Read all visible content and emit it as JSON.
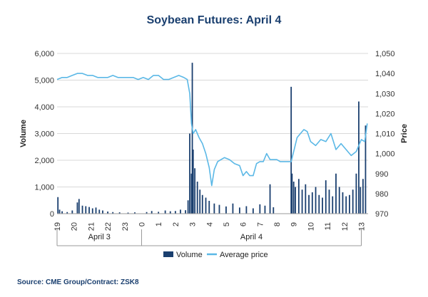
{
  "title": "Soybean Futures: April 4",
  "source": "Source: CME Group/Contract: ZSK8",
  "colors": {
    "volume": "#1a3f6f",
    "price": "#5bb8e6",
    "grid": "#d9d9d9"
  },
  "chart_data": {
    "type": "bar+line",
    "title": "Soybean Futures: April 4",
    "ylabel": "Volume",
    "y2label": "Price",
    "ylim": [
      0,
      6000
    ],
    "y2lim": [
      970,
      1050
    ],
    "y_ticks": [
      "0",
      "1,000",
      "2,000",
      "3,000",
      "4,000",
      "5,000",
      "6,000"
    ],
    "y2_ticks": [
      "970",
      "980",
      "990",
      "1,000",
      "1,010",
      "1,020",
      "1,030",
      "1,040",
      "1,050"
    ],
    "x_ticks": [
      {
        "label": "19",
        "t": 0
      },
      {
        "label": "20",
        "t": 1
      },
      {
        "label": "21",
        "t": 2
      },
      {
        "label": "22",
        "t": 3
      },
      {
        "label": "23",
        "t": 4
      },
      {
        "label": "0",
        "t": 5
      },
      {
        "label": "1",
        "t": 6
      },
      {
        "label": "2",
        "t": 7
      },
      {
        "label": "3",
        "t": 8
      },
      {
        "label": "4",
        "t": 9
      },
      {
        "label": "5",
        "t": 10
      },
      {
        "label": "6",
        "t": 11
      },
      {
        "label": "7",
        "t": 12
      },
      {
        "label": "8",
        "t": 13
      },
      {
        "label": "9",
        "t": 14
      },
      {
        "label": "10",
        "t": 15
      },
      {
        "label": "11",
        "t": 16
      },
      {
        "label": "12",
        "t": 17
      },
      {
        "label": "13",
        "t": 18
      }
    ],
    "x_groups": [
      {
        "label": "April 3",
        "from": 0,
        "to": 5
      },
      {
        "label": "April 4",
        "from": 5,
        "to": 18
      }
    ],
    "legend": [
      "Volume",
      "Average price"
    ],
    "legend_position": "bottom",
    "grid": "horizontal",
    "series": [
      {
        "name": "Volume",
        "type": "bar",
        "points": [
          [
            0.05,
            620
          ],
          [
            0.15,
            150
          ],
          [
            0.3,
            90
          ],
          [
            0.6,
            60
          ],
          [
            0.9,
            120
          ],
          [
            1.2,
            420
          ],
          [
            1.3,
            550
          ],
          [
            1.5,
            300
          ],
          [
            1.7,
            280
          ],
          [
            1.9,
            250
          ],
          [
            2.1,
            200
          ],
          [
            2.3,
            230
          ],
          [
            2.5,
            150
          ],
          [
            2.7,
            120
          ],
          [
            3.0,
            80
          ],
          [
            3.3,
            60
          ],
          [
            3.7,
            50
          ],
          [
            4.2,
            40
          ],
          [
            4.6,
            50
          ],
          [
            5.3,
            60
          ],
          [
            5.6,
            100
          ],
          [
            6.0,
            70
          ],
          [
            6.4,
            120
          ],
          [
            6.7,
            90
          ],
          [
            7.0,
            100
          ],
          [
            7.3,
            150
          ],
          [
            7.6,
            130
          ],
          [
            7.75,
            500
          ],
          [
            7.85,
            3000
          ],
          [
            7.95,
            1500
          ],
          [
            8.0,
            5650
          ],
          [
            8.05,
            2400
          ],
          [
            8.15,
            1700
          ],
          [
            8.3,
            1200
          ],
          [
            8.45,
            900
          ],
          [
            8.6,
            700
          ],
          [
            8.8,
            600
          ],
          [
            9.0,
            480
          ],
          [
            9.3,
            380
          ],
          [
            9.6,
            330
          ],
          [
            10.0,
            270
          ],
          [
            10.4,
            380
          ],
          [
            10.8,
            230
          ],
          [
            11.2,
            280
          ],
          [
            11.6,
            200
          ],
          [
            12.0,
            350
          ],
          [
            12.3,
            300
          ],
          [
            12.6,
            1100
          ],
          [
            12.8,
            240
          ],
          [
            13.85,
            4750
          ],
          [
            13.9,
            1500
          ],
          [
            14.0,
            1200
          ],
          [
            14.1,
            1000
          ],
          [
            14.3,
            1300
          ],
          [
            14.5,
            900
          ],
          [
            14.7,
            1100
          ],
          [
            14.9,
            700
          ],
          [
            15.1,
            800
          ],
          [
            15.3,
            1000
          ],
          [
            15.5,
            700
          ],
          [
            15.7,
            600
          ],
          [
            15.9,
            1250
          ],
          [
            16.1,
            900
          ],
          [
            16.3,
            650
          ],
          [
            16.5,
            1500
          ],
          [
            16.7,
            1000
          ],
          [
            16.9,
            800
          ],
          [
            17.1,
            650
          ],
          [
            17.3,
            700
          ],
          [
            17.5,
            900
          ],
          [
            17.7,
            1500
          ],
          [
            17.85,
            4200
          ],
          [
            17.95,
            1000
          ],
          [
            18.1,
            1300
          ],
          [
            18.25,
            3300
          ]
        ]
      },
      {
        "name": "Average price",
        "type": "line",
        "points": [
          [
            0.0,
            1037
          ],
          [
            0.3,
            1038
          ],
          [
            0.6,
            1038
          ],
          [
            0.9,
            1039
          ],
          [
            1.2,
            1040
          ],
          [
            1.5,
            1040
          ],
          [
            1.8,
            1039
          ],
          [
            2.1,
            1039
          ],
          [
            2.4,
            1038
          ],
          [
            2.7,
            1038
          ],
          [
            3.0,
            1038
          ],
          [
            3.3,
            1039
          ],
          [
            3.6,
            1038
          ],
          [
            3.9,
            1038
          ],
          [
            4.2,
            1038
          ],
          [
            4.5,
            1038
          ],
          [
            4.8,
            1037
          ],
          [
            5.1,
            1038
          ],
          [
            5.4,
            1037
          ],
          [
            5.7,
            1039
          ],
          [
            6.0,
            1039
          ],
          [
            6.3,
            1037
          ],
          [
            6.6,
            1037
          ],
          [
            6.9,
            1038
          ],
          [
            7.2,
            1039
          ],
          [
            7.5,
            1038
          ],
          [
            7.7,
            1037
          ],
          [
            7.85,
            1030
          ],
          [
            7.95,
            1015
          ],
          [
            8.05,
            1010
          ],
          [
            8.2,
            1012
          ],
          [
            8.4,
            1008
          ],
          [
            8.6,
            1005
          ],
          [
            8.8,
            1000
          ],
          [
            9.0,
            993
          ],
          [
            9.15,
            984
          ],
          [
            9.3,
            992
          ],
          [
            9.5,
            996
          ],
          [
            9.7,
            997
          ],
          [
            9.9,
            998
          ],
          [
            10.2,
            997
          ],
          [
            10.5,
            995
          ],
          [
            10.8,
            994
          ],
          [
            11.0,
            989
          ],
          [
            11.2,
            991
          ],
          [
            11.4,
            989
          ],
          [
            11.6,
            989
          ],
          [
            11.8,
            995
          ],
          [
            12.0,
            996
          ],
          [
            12.2,
            996
          ],
          [
            12.4,
            1000
          ],
          [
            12.6,
            997
          ],
          [
            12.8,
            997
          ],
          [
            13.0,
            997
          ],
          [
            13.2,
            996
          ],
          [
            13.5,
            996
          ],
          [
            13.85,
            996
          ],
          [
            14.0,
            1001
          ],
          [
            14.2,
            1008
          ],
          [
            14.4,
            1010
          ],
          [
            14.6,
            1012
          ],
          [
            14.8,
            1011
          ],
          [
            15.0,
            1006
          ],
          [
            15.3,
            1004
          ],
          [
            15.6,
            1007
          ],
          [
            15.9,
            1006
          ],
          [
            16.2,
            1010
          ],
          [
            16.5,
            1002
          ],
          [
            16.8,
            1005
          ],
          [
            17.1,
            1002
          ],
          [
            17.4,
            999
          ],
          [
            17.7,
            1001
          ],
          [
            18.0,
            1007
          ],
          [
            18.2,
            1006
          ],
          [
            18.35,
            1015
          ]
        ]
      }
    ]
  }
}
